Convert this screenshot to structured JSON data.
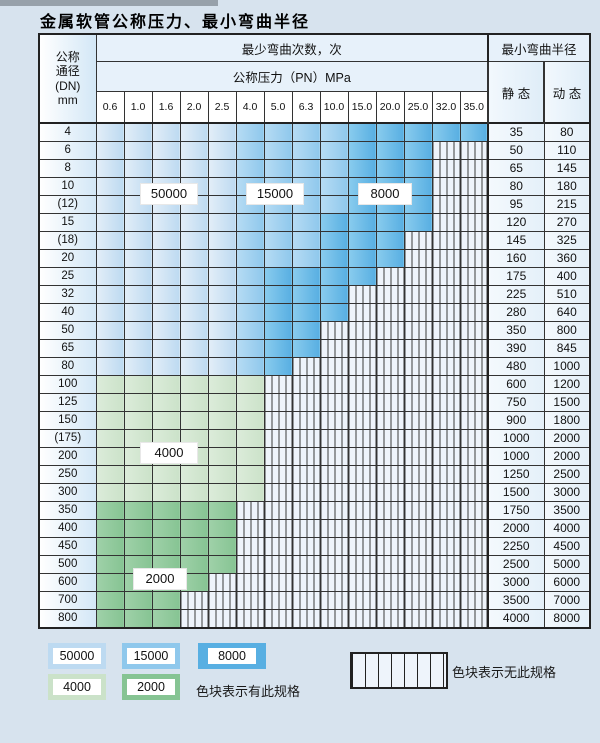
{
  "title": "金属软管公称压力、最小弯曲半径",
  "table": {
    "header": {
      "dn_lines": [
        "公称",
        "通径",
        "(DN)",
        "mm"
      ],
      "cycles_label": "最少弯曲次数，次",
      "pressure_label": "公称压力（PN）MPa",
      "pressure_values": [
        "0.6",
        "1.0",
        "1.6",
        "2.0",
        "2.5",
        "4.0",
        "5.0",
        "6.3",
        "10.0",
        "15.0",
        "20.0",
        "25.0",
        "32.0",
        "35.0"
      ],
      "radius_label": "最小弯曲半径",
      "static_label": "静 态",
      "dynamic_label": "动 态"
    },
    "band_meanings": {
      "1": "50000次",
      "2": "15000次",
      "3": "8000次",
      "4": "4000次",
      "5": "2000次",
      "x": "无此规格"
    },
    "band_labels": [
      {
        "text": "50000"
      },
      {
        "text": "15000"
      },
      {
        "text": "8000"
      },
      {
        "text": "4000"
      },
      {
        "text": "2000"
      }
    ],
    "rows": [
      {
        "dn": "4",
        "cells": "11111222233333",
        "static": "35",
        "dynamic": "80"
      },
      {
        "dn": "6",
        "cells": "111112222333xx",
        "static": "50",
        "dynamic": "110"
      },
      {
        "dn": "8",
        "cells": "111112222333xx",
        "static": "65",
        "dynamic": "145"
      },
      {
        "dn": "10",
        "cells": "111112222333xx",
        "static": "80",
        "dynamic": "180"
      },
      {
        "dn": "(12)",
        "cells": "111112222333xx",
        "static": "95",
        "dynamic": "215"
      },
      {
        "dn": "15",
        "cells": "111112223333xx",
        "static": "120",
        "dynamic": "270"
      },
      {
        "dn": "(18)",
        "cells": "11111222333xxx",
        "static": "145",
        "dynamic": "325"
      },
      {
        "dn": "20",
        "cells": "11111222333xxx",
        "static": "160",
        "dynamic": "360"
      },
      {
        "dn": "25",
        "cells": "1111123333xxxx",
        "static": "175",
        "dynamic": "400"
      },
      {
        "dn": "32",
        "cells": "111112333xxxxx",
        "static": "225",
        "dynamic": "510"
      },
      {
        "dn": "40",
        "cells": "111112333xxxxx",
        "static": "280",
        "dynamic": "640"
      },
      {
        "dn": "50",
        "cells": "11111233xxxxxx",
        "static": "350",
        "dynamic": "800"
      },
      {
        "dn": "65",
        "cells": "11111233xxxxxx",
        "static": "390",
        "dynamic": "845"
      },
      {
        "dn": "80",
        "cells": "1111123xxxxxxx",
        "static": "480",
        "dynamic": "1000"
      },
      {
        "dn": "100",
        "cells": "444444xxxxxxxx",
        "static": "600",
        "dynamic": "1200"
      },
      {
        "dn": "125",
        "cells": "444444xxxxxxxx",
        "static": "750",
        "dynamic": "1500"
      },
      {
        "dn": "150",
        "cells": "444444xxxxxxxx",
        "static": "900",
        "dynamic": "1800"
      },
      {
        "dn": "(175)",
        "cells": "444444xxxxxxxx",
        "static": "1000",
        "dynamic": "2000"
      },
      {
        "dn": "200",
        "cells": "444444xxxxxxxx",
        "static": "1000",
        "dynamic": "2000"
      },
      {
        "dn": "250",
        "cells": "444444xxxxxxxx",
        "static": "1250",
        "dynamic": "2500"
      },
      {
        "dn": "300",
        "cells": "444444xxxxxxxx",
        "static": "1500",
        "dynamic": "3000"
      },
      {
        "dn": "350",
        "cells": "55555xxxxxxxxx",
        "static": "1750",
        "dynamic": "3500"
      },
      {
        "dn": "400",
        "cells": "55555xxxxxxxxx",
        "static": "2000",
        "dynamic": "4000"
      },
      {
        "dn": "450",
        "cells": "55555xxxxxxxxx",
        "static": "2250",
        "dynamic": "4500"
      },
      {
        "dn": "500",
        "cells": "55555xxxxxxxxx",
        "static": "2500",
        "dynamic": "5000"
      },
      {
        "dn": "600",
        "cells": "5555xxxxxxxxxx",
        "static": "3000",
        "dynamic": "6000"
      },
      {
        "dn": "700",
        "cells": "555xxxxxxxxxxx",
        "static": "3500",
        "dynamic": "7000"
      },
      {
        "dn": "800",
        "cells": "555xxxxxxxxxxx",
        "static": "4000",
        "dynamic": "8000"
      }
    ]
  },
  "legend": {
    "items": [
      {
        "value": "50000",
        "band": "1"
      },
      {
        "value": "15000",
        "band": "2"
      },
      {
        "value": "8000",
        "band": "3"
      },
      {
        "value": "4000",
        "band": "4"
      },
      {
        "value": "2000",
        "band": "5"
      }
    ],
    "has_spec_text": "色块表示有此规格",
    "no_spec_text": "色块表示无此规格"
  },
  "colors": {
    "band_50000": "#bddaf1",
    "band_15000": "#8fc8ec",
    "band_8000": "#58afe2",
    "band_4000": "#cbe2c9",
    "band_2000": "#86c493",
    "no_spec_bg": "#eef4fb",
    "grid_line": "#333333",
    "page_bg": "#d7e3ee"
  }
}
